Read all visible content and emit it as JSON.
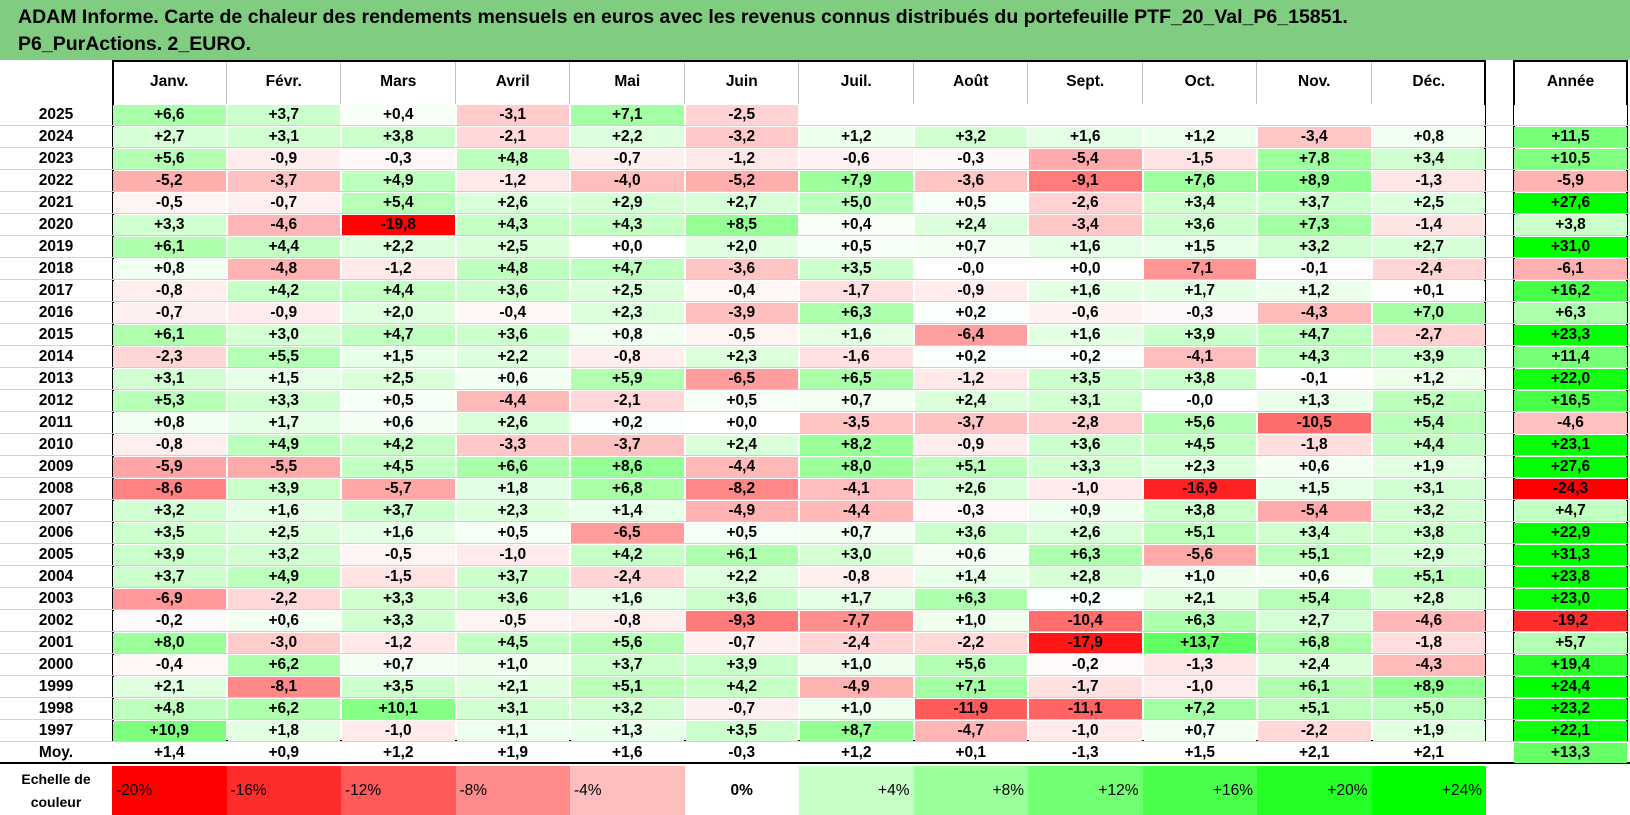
{
  "title": {
    "line1": "ADAM Informe. Carte de chaleur des rendements mensuels en euros avec les revenus connus distribués du portefeuille PTF_20_Val_P6_15851.",
    "line2": "P6_PurActions. 2_EURO."
  },
  "chart_data": {
    "type": "heatmap",
    "columns": [
      "Janv.",
      "Févr.",
      "Mars",
      "Avril",
      "Mai",
      "Juin",
      "Juil.",
      "Août",
      "Sept.",
      "Oct.",
      "Nov.",
      "Déc."
    ],
    "annual_header": "Année",
    "rows": [
      {
        "year": "2025",
        "values": [
          "+6,6",
          "+3,7",
          "+0,4",
          "-3,1",
          "+7,1",
          "-2,5",
          "",
          "",
          "",
          "",
          "",
          ""
        ],
        "annual": ""
      },
      {
        "year": "2024",
        "values": [
          "+2,7",
          "+3,1",
          "+3,8",
          "-2,1",
          "+2,2",
          "-3,2",
          "+1,2",
          "+3,2",
          "+1,6",
          "+1,2",
          "-3,4",
          "+0,8"
        ],
        "annual": "+11,5"
      },
      {
        "year": "2023",
        "values": [
          "+5,6",
          "-0,9",
          "-0,3",
          "+4,8",
          "-0,7",
          "-1,2",
          "-0,6",
          "-0,3",
          "-5,4",
          "-1,5",
          "+7,8",
          "+3,4"
        ],
        "annual": "+10,5"
      },
      {
        "year": "2022",
        "values": [
          "-5,2",
          "-3,7",
          "+4,9",
          "-1,2",
          "-4,0",
          "-5,2",
          "+7,9",
          "-3,6",
          "-9,1",
          "+7,6",
          "+8,9",
          "-1,3"
        ],
        "annual": "-5,9"
      },
      {
        "year": "2021",
        "values": [
          "-0,5",
          "-0,7",
          "+5,4",
          "+2,6",
          "+2,9",
          "+2,7",
          "+5,0",
          "+0,5",
          "-2,6",
          "+3,4",
          "+3,7",
          "+2,5"
        ],
        "annual": "+27,6"
      },
      {
        "year": "2020",
        "values": [
          "+3,3",
          "-4,6",
          "-19,8",
          "+4,3",
          "+4,3",
          "+8,5",
          "+0,4",
          "+2,4",
          "-3,4",
          "+3,6",
          "+7,3",
          "-1,4"
        ],
        "annual": "+3,8"
      },
      {
        "year": "2019",
        "values": [
          "+6,1",
          "+4,4",
          "+2,2",
          "+2,5",
          "+0,0",
          "+2,0",
          "+0,5",
          "+0,7",
          "+1,6",
          "+1,5",
          "+3,2",
          "+2,7"
        ],
        "annual": "+31,0"
      },
      {
        "year": "2018",
        "values": [
          "+0,8",
          "-4,8",
          "-1,2",
          "+4,8",
          "+4,7",
          "-3,6",
          "+3,5",
          "-0,0",
          "+0,0",
          "-7,1",
          "-0,1",
          "-2,4"
        ],
        "annual": "-6,1"
      },
      {
        "year": "2017",
        "values": [
          "-0,8",
          "+4,2",
          "+4,4",
          "+3,6",
          "+2,5",
          "-0,4",
          "-1,7",
          "-0,9",
          "+1,6",
          "+1,7",
          "+1,2",
          "+0,1"
        ],
        "annual": "+16,2"
      },
      {
        "year": "2016",
        "values": [
          "-0,7",
          "-0,9",
          "+2,0",
          "-0,4",
          "+2,3",
          "-3,9",
          "+6,3",
          "+0,2",
          "-0,6",
          "-0,3",
          "-4,3",
          "+7,0"
        ],
        "annual": "+6,3"
      },
      {
        "year": "2015",
        "values": [
          "+6,1",
          "+3,0",
          "+4,7",
          "+3,6",
          "+0,8",
          "-0,5",
          "+1,6",
          "-6,4",
          "+1,6",
          "+3,9",
          "+4,7",
          "-2,7"
        ],
        "annual": "+23,3"
      },
      {
        "year": "2014",
        "values": [
          "-2,3",
          "+5,5",
          "+1,5",
          "+2,2",
          "-0,8",
          "+2,3",
          "-1,6",
          "+0,2",
          "+0,2",
          "-4,1",
          "+4,3",
          "+3,9"
        ],
        "annual": "+11,4"
      },
      {
        "year": "2013",
        "values": [
          "+3,1",
          "+1,5",
          "+2,5",
          "+0,6",
          "+5,9",
          "-6,5",
          "+6,5",
          "-1,2",
          "+3,5",
          "+3,8",
          "-0,1",
          "+1,2"
        ],
        "annual": "+22,0"
      },
      {
        "year": "2012",
        "values": [
          "+5,3",
          "+3,3",
          "+0,5",
          "-4,4",
          "-2,1",
          "+0,5",
          "+0,7",
          "+2,4",
          "+3,1",
          "-0,0",
          "+1,3",
          "+5,2"
        ],
        "annual": "+16,5"
      },
      {
        "year": "2011",
        "values": [
          "+0,8",
          "+1,7",
          "+0,6",
          "+2,6",
          "+0,2",
          "+0,0",
          "-3,5",
          "-3,7",
          "-2,8",
          "+5,6",
          "-10,5",
          "+5,4"
        ],
        "annual": "-4,6"
      },
      {
        "year": "2010",
        "values": [
          "-0,8",
          "+4,9",
          "+4,2",
          "-3,3",
          "-3,7",
          "+2,4",
          "+8,2",
          "-0,9",
          "+3,6",
          "+4,5",
          "-1,8",
          "+4,4"
        ],
        "annual": "+23,1"
      },
      {
        "year": "2009",
        "values": [
          "-5,9",
          "-5,5",
          "+4,5",
          "+6,6",
          "+8,6",
          "-4,4",
          "+8,0",
          "+5,1",
          "+3,3",
          "+2,3",
          "+0,6",
          "+1,9"
        ],
        "annual": "+27,6"
      },
      {
        "year": "2008",
        "values": [
          "-8,6",
          "+3,9",
          "-5,7",
          "+1,8",
          "+6,8",
          "-8,2",
          "-4,1",
          "+2,6",
          "-1,0",
          "-16,9",
          "+1,5",
          "+3,1"
        ],
        "annual": "-24,3"
      },
      {
        "year": "2007",
        "values": [
          "+3,2",
          "+1,6",
          "+3,7",
          "+2,3",
          "+1,4",
          "-4,9",
          "-4,4",
          "-0,3",
          "+0,9",
          "+3,8",
          "-5,4",
          "+3,2"
        ],
        "annual": "+4,7"
      },
      {
        "year": "2006",
        "values": [
          "+3,5",
          "+2,5",
          "+1,6",
          "+0,5",
          "-6,5",
          "+0,5",
          "+0,7",
          "+3,6",
          "+2,6",
          "+5,1",
          "+3,4",
          "+3,8"
        ],
        "annual": "+22,9"
      },
      {
        "year": "2005",
        "values": [
          "+3,9",
          "+3,2",
          "-0,5",
          "-1,0",
          "+4,2",
          "+6,1",
          "+3,0",
          "+0,6",
          "+6,3",
          "-5,6",
          "+5,1",
          "+2,9"
        ],
        "annual": "+31,3"
      },
      {
        "year": "2004",
        "values": [
          "+3,7",
          "+4,9",
          "-1,5",
          "+3,7",
          "-2,4",
          "+2,2",
          "-0,8",
          "+1,4",
          "+2,8",
          "+1,0",
          "+0,6",
          "+5,1"
        ],
        "annual": "+23,8"
      },
      {
        "year": "2003",
        "values": [
          "-6,9",
          "-2,2",
          "+3,3",
          "+3,6",
          "+1,6",
          "+3,6",
          "+1,7",
          "+6,3",
          "+0,2",
          "+2,1",
          "+5,4",
          "+2,8"
        ],
        "annual": "+23,0"
      },
      {
        "year": "2002",
        "values": [
          "-0,2",
          "+0,6",
          "+3,3",
          "-0,5",
          "-0,8",
          "-9,3",
          "-7,7",
          "+1,0",
          "-10,4",
          "+6,3",
          "+2,7",
          "-4,6"
        ],
        "annual": "-19,2"
      },
      {
        "year": "2001",
        "values": [
          "+8,0",
          "-3,0",
          "-1,2",
          "+4,5",
          "+5,6",
          "-0,7",
          "-2,4",
          "-2,2",
          "-17,9",
          "+13,7",
          "+6,8",
          "-1,8"
        ],
        "annual": "+5,7"
      },
      {
        "year": "2000",
        "values": [
          "-0,4",
          "+6,2",
          "+0,7",
          "+1,0",
          "+3,7",
          "+3,9",
          "+1,0",
          "+5,6",
          "-0,2",
          "-1,3",
          "+2,4",
          "-4,3"
        ],
        "annual": "+19,4"
      },
      {
        "year": "1999",
        "values": [
          "+2,1",
          "-8,1",
          "+3,5",
          "+2,1",
          "+5,1",
          "+4,2",
          "-4,9",
          "+7,1",
          "-1,7",
          "-1,0",
          "+6,1",
          "+8,9"
        ],
        "annual": "+24,4"
      },
      {
        "year": "1998",
        "values": [
          "+4,8",
          "+6,2",
          "+10,1",
          "+3,1",
          "+3,2",
          "-0,7",
          "+1,0",
          "-11,9",
          "-11,1",
          "+7,2",
          "+5,1",
          "+5,0"
        ],
        "annual": "+23,2"
      },
      {
        "year": "1997",
        "values": [
          "+10,9",
          "+1,8",
          "-1,0",
          "+1,1",
          "+1,3",
          "+3,5",
          "+8,7",
          "-4,7",
          "-1,0",
          "+0,7",
          "-2,2",
          "+1,9"
        ],
        "annual": "+22,1"
      }
    ],
    "average": {
      "label": "Moy.",
      "values": [
        "+1,4",
        "+0,9",
        "+1,2",
        "+1,9",
        "+1,6",
        "-0,3",
        "+1,2",
        "+0,1",
        "-1,3",
        "+1,5",
        "+2,1",
        "+2,1"
      ],
      "annual": "+13,3"
    },
    "scale": {
      "label_line1": "Echelle de",
      "label_line2": "couleur",
      "steps": [
        "-20%",
        "-16%",
        "-12%",
        "-8%",
        "-4%",
        "0%",
        "+4%",
        "+8%",
        "+12%",
        "+16%",
        "+20%",
        "+24%"
      ]
    },
    "colors": {
      "neg_max": "#ff0000",
      "pos_max": "#00ff00",
      "neutral": "#ffffff",
      "title_bg": "#80cc80",
      "annual_neg": "#ff0000",
      "annual_pos": "#00ff00"
    }
  }
}
